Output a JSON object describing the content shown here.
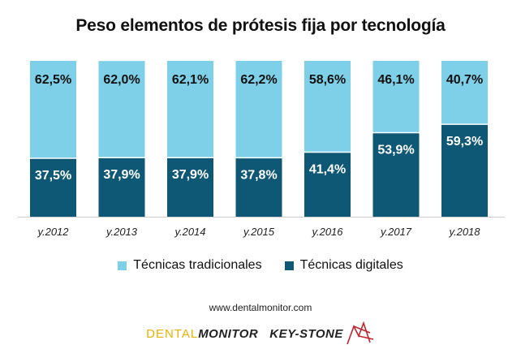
{
  "chart_data": {
    "type": "bar",
    "stacked": true,
    "title": "Peso elementos de prótesis fija por tecnología",
    "categories": [
      "y.2012",
      "y.2013",
      "y.2014",
      "y.2015",
      "y.2016",
      "y.2017",
      "y.2018"
    ],
    "series": [
      {
        "name": "Técnicas digitales",
        "color": "#0e5876",
        "values": [
          37.5,
          37.9,
          37.9,
          37.8,
          41.4,
          53.9,
          59.3
        ],
        "labels": [
          "37,5%",
          "37,9%",
          "37,9%",
          "37,8%",
          "41,4%",
          "53,9%",
          "59,3%"
        ]
      },
      {
        "name": "Técnicas tradicionales",
        "color": "#7dd0e8",
        "values": [
          62.5,
          62.0,
          62.1,
          62.2,
          58.6,
          46.1,
          40.7
        ],
        "labels": [
          "62,5%",
          "62,0%",
          "62,1%",
          "62,2%",
          "58,6%",
          "46,1%",
          "40,7%"
        ]
      }
    ],
    "ylim": [
      0,
      100
    ],
    "legend_order": [
      "Técnicas tradicionales",
      "Técnicas digitales"
    ],
    "legend_position": "bottom",
    "grid": false
  },
  "footer": {
    "website": "www.dentalmonitor.com",
    "logo_dental": "DENTAL",
    "logo_monitor": "MONITOR",
    "logo_keystone": "KEY-STONE"
  }
}
